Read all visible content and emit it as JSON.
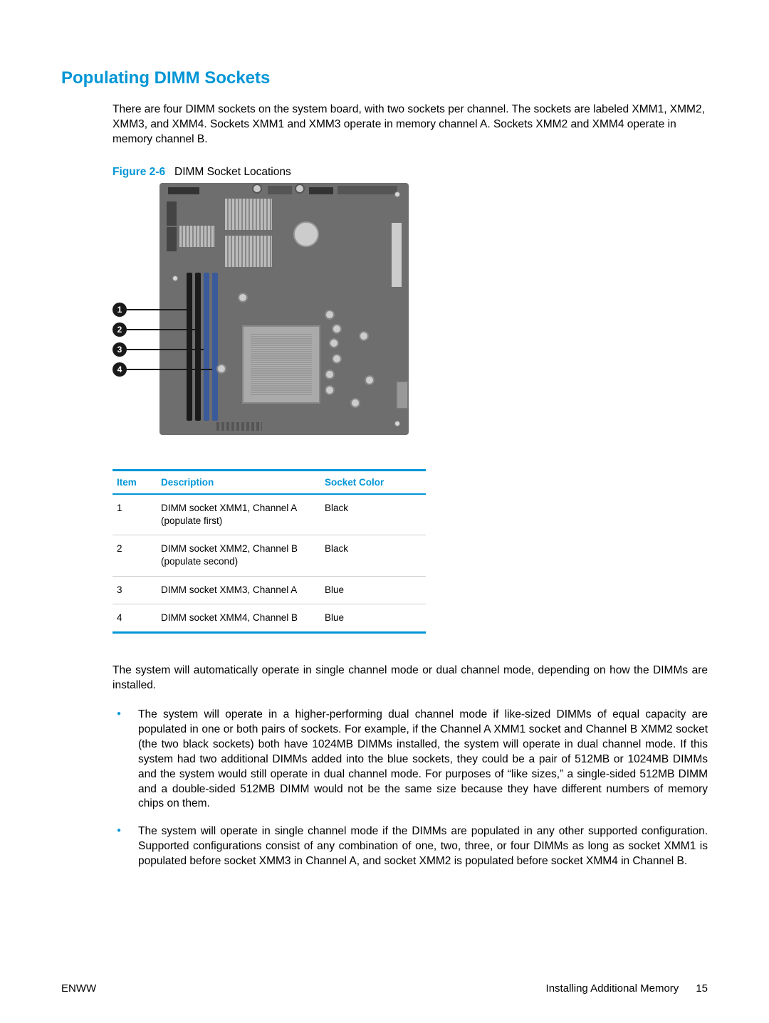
{
  "colors": {
    "accent": "#0096d6",
    "text": "#000000",
    "background": "#ffffff",
    "board": "#6e6e6e",
    "dimm_black": "#1a1a1a",
    "dimm_blue": "#3a5a9a",
    "table_rule": "#cfcfcf"
  },
  "typography": {
    "heading_fontsize_pt": 18,
    "body_fontsize_pt": 11.5,
    "table_fontsize_pt": 10,
    "font_family": "Arial"
  },
  "heading": "Populating DIMM Sockets",
  "intro": "There are four DIMM sockets on the system board, with two sockets per channel. The sockets are labeled XMM1, XMM2, XMM3, and XMM4. Sockets XMM1 and XMM3 operate in memory channel A. Sockets XMM2 and XMM4 operate in memory channel B.",
  "figure": {
    "label": "Figure 2-6",
    "caption": "DIMM Socket Locations",
    "callouts": [
      "1",
      "2",
      "3",
      "4"
    ]
  },
  "table": {
    "headers": {
      "item": "Item",
      "description": "Description",
      "color": "Socket Color"
    },
    "rows": [
      {
        "item": "1",
        "description": "DIMM socket XMM1, Channel A (populate first)",
        "color": "Black"
      },
      {
        "item": "2",
        "description": "DIMM socket XMM2, Channel B (populate second)",
        "color": "Black"
      },
      {
        "item": "3",
        "description": "DIMM socket XMM3, Channel A",
        "color": "Blue"
      },
      {
        "item": "4",
        "description": "DIMM socket XMM4, Channel B",
        "color": "Blue"
      }
    ]
  },
  "para_after_table": "The system will automatically operate in single channel mode or dual channel mode, depending on how the DIMMs are installed.",
  "bullets": [
    "The system will operate in a higher-performing dual channel mode if like-sized DIMMs of equal capacity are populated in one or both pairs of sockets. For example, if the Channel A XMM1 socket and Channel B XMM2 socket (the two black sockets) both have 1024MB DIMMs installed, the system will operate in dual channel mode. If this system had two additional DIMMs added into the blue sockets, they could be a pair of 512MB or 1024MB DIMMs and the system would still operate in dual channel mode. For purposes of “like sizes,” a single-sided 512MB DIMM and a double-sided 512MB DIMM would not be the same size because they have different numbers of memory chips on them.",
    "The system will operate in single channel mode if the DIMMs are populated in any other supported configuration. Supported configurations consist of any combination of one, two, three, or four DIMMs as long as socket XMM1 is populated before socket XMM3 in Channel A, and socket XMM2 is populated before socket XMM4 in Channel B."
  ],
  "footer": {
    "left": "ENWW",
    "section": "Installing Additional Memory",
    "page": "15"
  }
}
